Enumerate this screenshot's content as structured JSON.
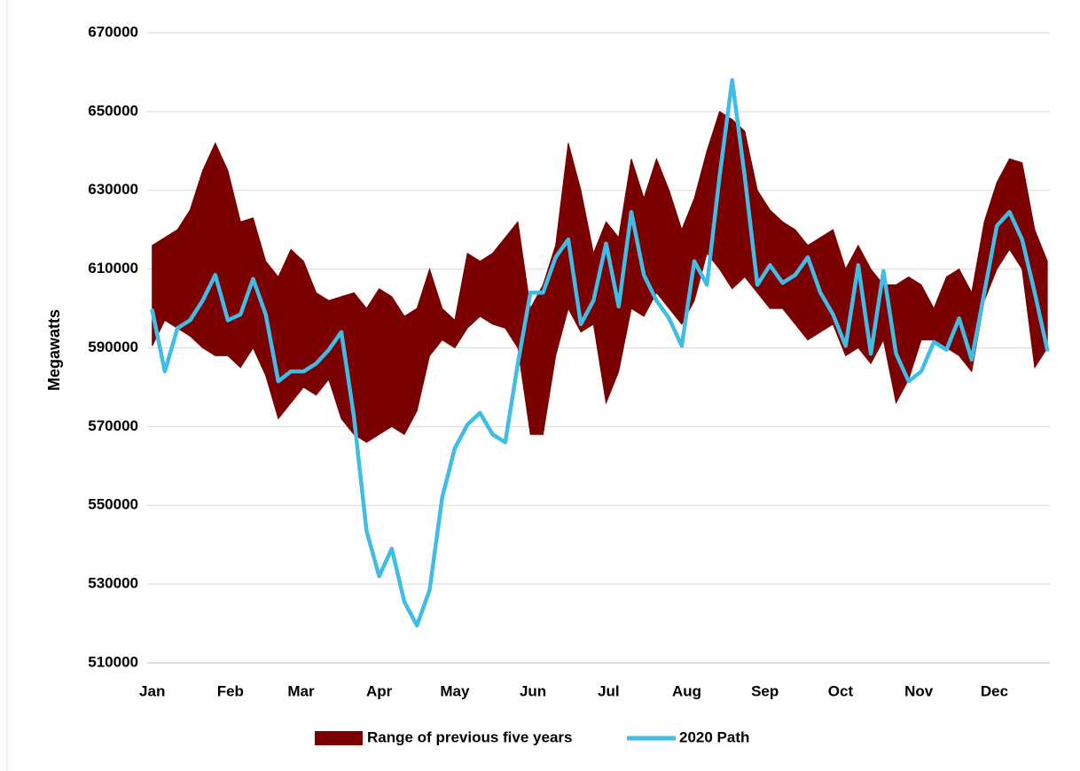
{
  "chart_data": {
    "type": "line",
    "ylabel": "Megawatts",
    "x": [
      0,
      5,
      10,
      15,
      20,
      25,
      30,
      35,
      40,
      45,
      50,
      55,
      60,
      65,
      70,
      75,
      80,
      85,
      90,
      95,
      100,
      105,
      110,
      115,
      120,
      125,
      130,
      135,
      140,
      145,
      150,
      155,
      160,
      165,
      170,
      175,
      180,
      185,
      190,
      195,
      200,
      205,
      210,
      215,
      220,
      225,
      230,
      235,
      240,
      245,
      250,
      255,
      260,
      265,
      270,
      275,
      280,
      285,
      290,
      295,
      300,
      305,
      310,
      315,
      320,
      325,
      330,
      335,
      340,
      345,
      350,
      355
    ],
    "xlim": [
      -2,
      356
    ],
    "xticks": [
      {
        "value": 0,
        "label": "Jan"
      },
      {
        "value": 31,
        "label": "Feb"
      },
      {
        "value": 59,
        "label": "Mar"
      },
      {
        "value": 90,
        "label": "Apr"
      },
      {
        "value": 120,
        "label": "May"
      },
      {
        "value": 151,
        "label": "Jun"
      },
      {
        "value": 181,
        "label": "Jul"
      },
      {
        "value": 212,
        "label": "Aug"
      },
      {
        "value": 243,
        "label": "Sep"
      },
      {
        "value": 273,
        "label": "Oct"
      },
      {
        "value": 304,
        "label": "Nov"
      },
      {
        "value": 334,
        "label": "Dec"
      }
    ],
    "ylim": [
      510000,
      670000
    ],
    "yticks": [
      510000,
      530000,
      550000,
      570000,
      590000,
      610000,
      630000,
      650000,
      670000
    ],
    "grid": true,
    "legend": "bottom",
    "series": [
      {
        "name": "Range of previous five years",
        "color": "#7b0000",
        "high": [
          616000,
          618000,
          620000,
          625000,
          635000,
          642000,
          635000,
          622000,
          623000,
          612000,
          608000,
          615000,
          612000,
          604000,
          602000,
          603000,
          604000,
          600000,
          605000,
          603000,
          598000,
          600000,
          610000,
          600000,
          597000,
          614000,
          612000,
          614000,
          618000,
          622000,
          600000,
          606000,
          616000,
          642000,
          630000,
          614000,
          622000,
          618000,
          638000,
          628000,
          638000,
          630000,
          620000,
          628000,
          640000,
          650000,
          648000,
          645000,
          630000,
          625000,
          622000,
          620000,
          616000,
          618000,
          620000,
          610000,
          616000,
          610000,
          606000,
          606000,
          608000,
          606000,
          600000,
          608000,
          610000,
          604000,
          622000,
          632000,
          638000,
          637000,
          620000,
          612000
        ],
        "low": [
          590500,
          597000,
          595000,
          593000,
          590000,
          588000,
          588000,
          585000,
          590000,
          583000,
          572000,
          576000,
          580000,
          578000,
          582000,
          572000,
          568000,
          566000,
          568000,
          570000,
          568000,
          574000,
          588000,
          592000,
          590000,
          595000,
          598000,
          596000,
          595000,
          590000,
          568000,
          568000,
          588000,
          600000,
          594000,
          596000,
          576000,
          584000,
          600000,
          598000,
          604000,
          600000,
          596000,
          602000,
          614000,
          610000,
          605000,
          608000,
          604000,
          600000,
          600000,
          596000,
          592000,
          594000,
          596000,
          588000,
          590000,
          586000,
          592000,
          576000,
          582000,
          592000,
          592000,
          590000,
          588000,
          584000,
          602000,
          610000,
          615000,
          610000,
          585000,
          590000
        ]
      },
      {
        "name": "2020 Path",
        "color": "#3fbde6",
        "values": [
          599500,
          584000,
          595000,
          597000,
          602000,
          608500,
          597000,
          598500,
          607500,
          598500,
          581500,
          584000,
          584000,
          586000,
          589500,
          594000,
          572500,
          543500,
          532000,
          539000,
          525500,
          519500,
          528500,
          552000,
          564500,
          570500,
          573500,
          568000,
          566000,
          586000,
          604000,
          604000,
          613000,
          617500,
          596000,
          602000,
          616500,
          600500,
          624500,
          608500,
          602000,
          597500,
          590500,
          612000,
          606000,
          633500,
          658000,
          633500,
          606000,
          611000,
          606500,
          608500,
          613000,
          604000,
          598500,
          590500,
          611000,
          588500,
          609500,
          588500,
          581500,
          584000,
          591500,
          589500,
          597500,
          587000,
          604000,
          621000,
          624500,
          617500,
          604000,
          589500
        ]
      }
    ]
  }
}
